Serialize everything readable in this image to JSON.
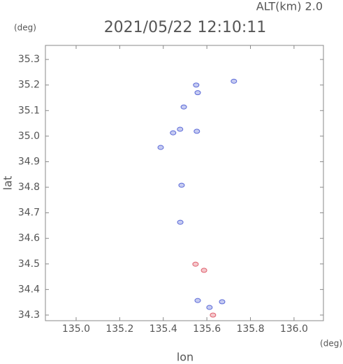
{
  "chart_data": {
    "type": "scatter",
    "title": "2021/05/22 12:10:11",
    "annotation": "ALT(km) 2.0",
    "y_unit": "(deg)",
    "x_unit": "(deg)",
    "xlabel": "lon",
    "ylabel": "lat",
    "xlim": [
      134.859,
      136.135
    ],
    "ylim": [
      34.278,
      35.355
    ],
    "xticks": [
      {
        "value": 135,
        "label": "135.0"
      },
      135.2,
      135.4,
      135.6,
      135.8,
      {
        "value": 136,
        "label": "136.0"
      }
    ],
    "yticks": [
      34.3,
      34.4,
      34.5,
      34.6,
      34.7,
      34.8,
      34.9,
      {
        "value": 35,
        "label": "35.0"
      },
      35.1,
      35.2,
      35.3
    ],
    "series": [
      {
        "color": "#5b6ad8",
        "x": [
          135.724,
          135.551,
          135.558,
          135.494,
          135.445,
          135.477,
          135.388,
          135.554,
          135.484,
          135.478,
          135.612,
          135.558,
          135.67
        ],
        "y": [
          35.215,
          35.2,
          35.17,
          35.114,
          35.013,
          35.027,
          34.956,
          35.019,
          34.808,
          34.663,
          34.33,
          34.357,
          34.352
        ]
      },
      {
        "color": "#e0606e",
        "x": [
          135.548,
          135.587,
          135.628
        ],
        "y": [
          34.499,
          34.475,
          34.3
        ]
      }
    ]
  }
}
